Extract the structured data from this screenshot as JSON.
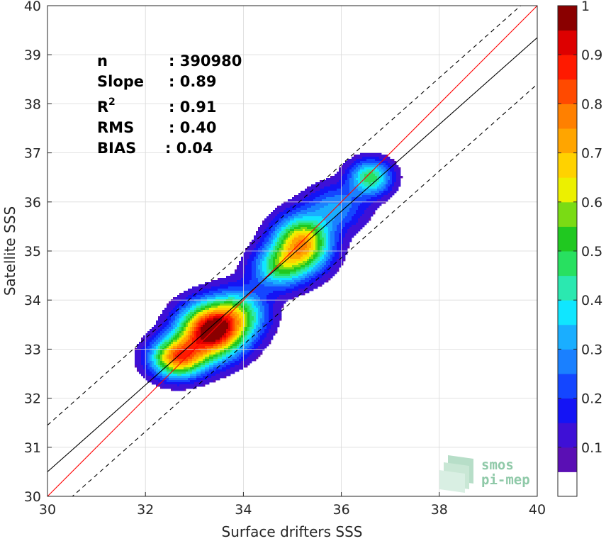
{
  "chart_data": {
    "type": "heatmap",
    "subtype": "scatter density contour",
    "xlabel": "Surface drifters SSS",
    "ylabel": "Satellite SSS",
    "xlim": [
      30,
      40
    ],
    "ylim": [
      30,
      40
    ],
    "xticks": [
      "30",
      "32",
      "34",
      "36",
      "38",
      "40"
    ],
    "yticks": [
      "30",
      "31",
      "32",
      "33",
      "34",
      "35",
      "36",
      "37",
      "38",
      "39",
      "40"
    ],
    "grid": true,
    "stats": [
      {
        "label": "n",
        "value": ": 390980"
      },
      {
        "label": "Slope",
        "value": ": 0.89"
      },
      {
        "label": "R",
        "sup": "2",
        "value": ": 0.91"
      },
      {
        "label": "RMS",
        "value": ": 0.40"
      },
      {
        "label": "BIAS",
        "value": ": 0.04"
      }
    ],
    "lines": [
      {
        "name": "one-to-one",
        "color": "#ff0000",
        "style": "solid",
        "x": [
          30,
          40
        ],
        "y": [
          30,
          40
        ]
      },
      {
        "name": "regression",
        "color": "#000000",
        "style": "solid",
        "x": [
          30,
          40
        ],
        "y": [
          30.5,
          39.35
        ]
      },
      {
        "name": "upper-bound",
        "color": "#000000",
        "style": "dashed",
        "x": [
          30,
          40
        ],
        "y": [
          31.45,
          40.3
        ]
      },
      {
        "name": "lower-bound",
        "color": "#000000",
        "style": "dashed",
        "x": [
          30,
          40
        ],
        "y": [
          29.55,
          38.4
        ]
      }
    ],
    "density_blobs": [
      {
        "x": 33.35,
        "y": 33.37,
        "sx": 0.45,
        "sy": 0.38,
        "amp": 1.0
      },
      {
        "x": 32.65,
        "y": 32.82,
        "sx": 0.38,
        "sy": 0.28,
        "amp": 0.74
      },
      {
        "x": 33.95,
        "y": 33.75,
        "sx": 0.4,
        "sy": 0.35,
        "amp": 0.36
      },
      {
        "x": 35.2,
        "y": 35.15,
        "sx": 0.4,
        "sy": 0.38,
        "amp": 0.72
      },
      {
        "x": 34.7,
        "y": 34.65,
        "sx": 0.38,
        "sy": 0.3,
        "amp": 0.38
      },
      {
        "x": 35.9,
        "y": 35.9,
        "sx": 0.42,
        "sy": 0.32,
        "amp": 0.25
      },
      {
        "x": 36.6,
        "y": 36.5,
        "sx": 0.3,
        "sy": 0.25,
        "amp": 0.45
      }
    ],
    "colorbar": {
      "ticks": [
        "0.1",
        "0.2",
        "0.3",
        "0.4",
        "0.5",
        "0.6",
        "0.7",
        "0.8",
        "0.9",
        "1"
      ],
      "colors": [
        "#ffffff",
        "#5a0fb4",
        "#3e10d6",
        "#1414f5",
        "#1446ff",
        "#1a80ff",
        "#1aaeff",
        "#10e6ff",
        "#2be8b0",
        "#28e060",
        "#20c820",
        "#7adb14",
        "#ecf000",
        "#ffd200",
        "#ffa500",
        "#ff8000",
        "#ff4a00",
        "#ff1a00",
        "#dd0000",
        "#8a0000"
      ]
    },
    "logo": {
      "line1": "smos",
      "line2": "pi-mep"
    }
  }
}
